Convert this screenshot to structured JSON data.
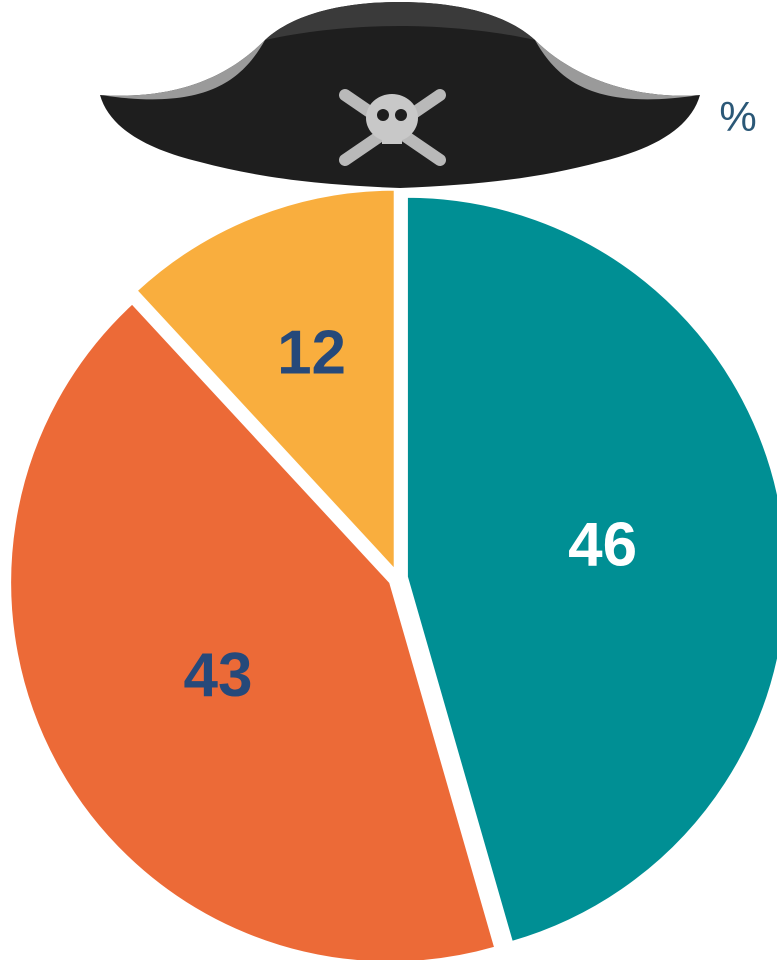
{
  "chart_data": {
    "type": "pie",
    "annotation": "%",
    "values": [
      46,
      43,
      12
    ],
    "colors": [
      "#008f94",
      "#ec6a37",
      "#f9ae3e"
    ],
    "label_colors": [
      "#ffffff",
      "#26497a",
      "#26497a"
    ]
  }
}
